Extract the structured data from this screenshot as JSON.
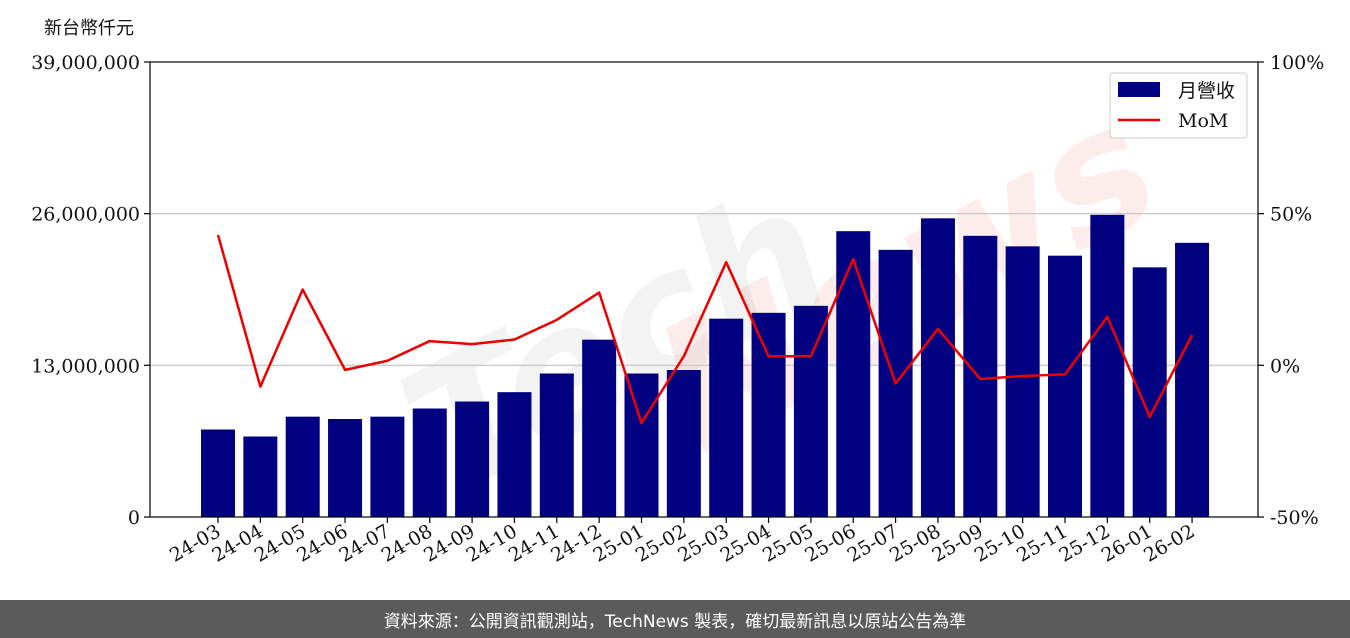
{
  "chart_data": {
    "type": "bar",
    "unit_label": "新台幣仟元",
    "categories": [
      "24-03",
      "24-04",
      "24-05",
      "24-06",
      "24-07",
      "24-08",
      "24-09",
      "24-10",
      "24-11",
      "24-12",
      "25-01",
      "25-02",
      "25-03",
      "25-04",
      "25-05",
      "25-06",
      "25-07",
      "25-08",
      "25-09",
      "25-10",
      "25-11",
      "25-12",
      "26-01",
      "26-02"
    ],
    "series": [
      {
        "name": "月營收",
        "axis": "left",
        "type": "bar",
        "color": "#000080",
        "values": [
          7500000,
          6900000,
          8600000,
          8400000,
          8600000,
          9300000,
          9900000,
          10700000,
          12300000,
          15200000,
          12300000,
          12600000,
          17000000,
          17500000,
          18100000,
          24500000,
          22900000,
          25600000,
          24100000,
          23200000,
          22400000,
          25900000,
          21400000,
          23500000
        ]
      },
      {
        "name": "MoM",
        "axis": "right",
        "type": "line",
        "color": "#ee0000",
        "values": [
          43,
          -7,
          25,
          -1.5,
          1.5,
          8,
          7,
          8.5,
          15,
          24,
          -19,
          3,
          34,
          3,
          3,
          35,
          -6,
          12,
          -4.5,
          -3.5,
          -3,
          16,
          -17,
          10
        ]
      }
    ],
    "left_axis": {
      "ylim": [
        0,
        39000000
      ],
      "ticks": [
        0,
        13000000,
        26000000,
        39000000
      ],
      "tick_labels": [
        "0",
        "13,000,000",
        "26,000,000",
        "39,000,000"
      ]
    },
    "right_axis": {
      "ylim": [
        -50,
        100
      ],
      "ticks": [
        -50,
        0,
        50,
        100
      ],
      "tick_labels": [
        "-50%",
        "0%",
        "50%",
        "100%"
      ]
    },
    "grid": true,
    "legend": "top-right",
    "watermark": "TechNews"
  },
  "footer": {
    "text": "資料來源：公開資訊觀測站，TechNews 製表，確切最新訊息以原站公告為準"
  }
}
